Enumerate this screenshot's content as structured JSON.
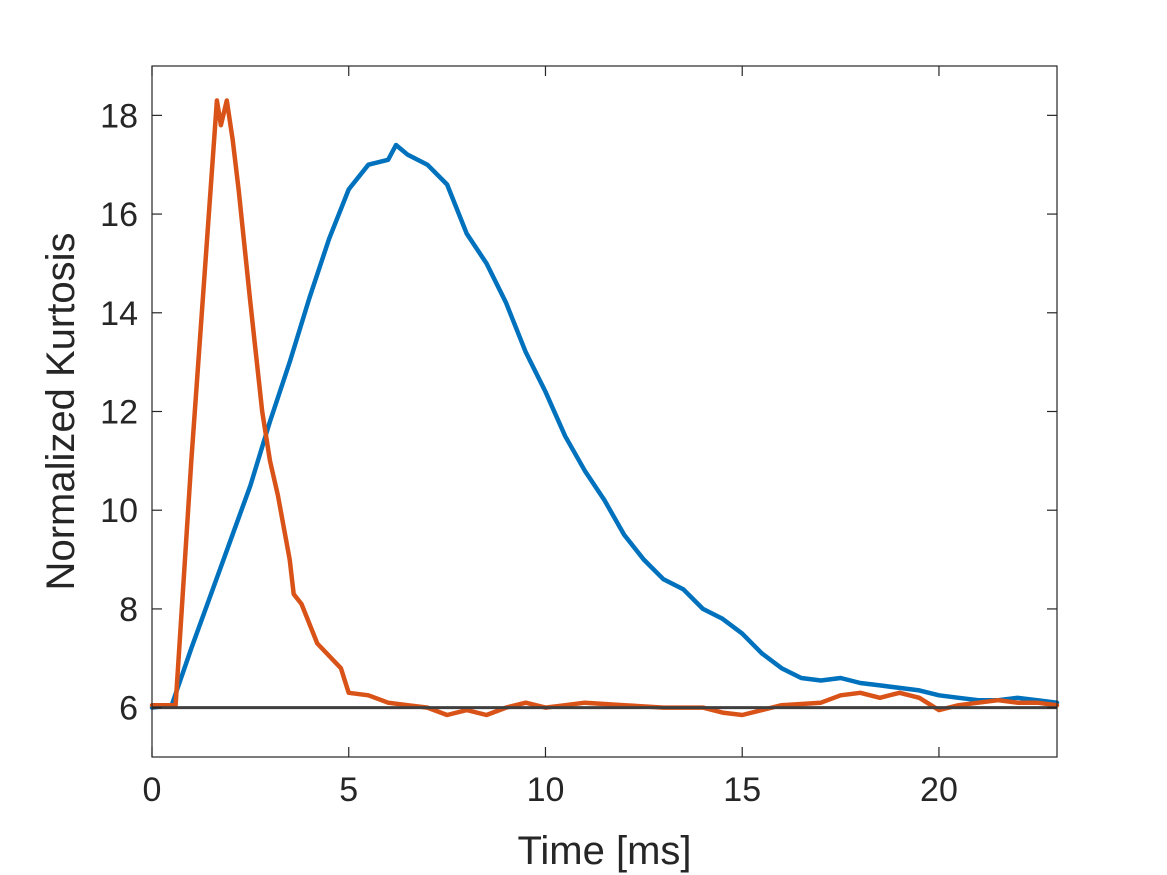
{
  "chart_data": {
    "type": "line",
    "title": "",
    "xlabel": "Time [ms]",
    "ylabel": "Normalized Kurtosis",
    "xlim": [
      0,
      23
    ],
    "ylim": [
      5,
      19
    ],
    "xticks": [
      0,
      5,
      10,
      15,
      20
    ],
    "yticks": [
      6,
      8,
      10,
      12,
      14,
      16,
      18
    ],
    "grid": false,
    "legend": "none",
    "reference_line": {
      "y": 6,
      "color": "#3f3f3f"
    },
    "series": [
      {
        "color": "#0072BD",
        "x": [
          0,
          0.5,
          1.0,
          1.5,
          2.0,
          2.5,
          3.0,
          3.5,
          4.0,
          4.5,
          5.0,
          5.5,
          6.0,
          6.2,
          6.5,
          7.0,
          7.5,
          8.0,
          8.5,
          9.0,
          9.5,
          10.0,
          10.5,
          11.0,
          11.5,
          12.0,
          12.5,
          13.0,
          13.5,
          14.0,
          14.5,
          15.0,
          15.5,
          16.0,
          16.5,
          17.0,
          17.5,
          18.0,
          18.5,
          19.0,
          19.5,
          20.0,
          20.5,
          21.0,
          21.5,
          22.0,
          22.5,
          23.0
        ],
        "y": [
          6.0,
          6.05,
          7.2,
          8.3,
          9.4,
          10.5,
          11.8,
          13.0,
          14.3,
          15.5,
          16.5,
          17.0,
          17.1,
          17.4,
          17.2,
          17.0,
          16.6,
          15.6,
          15.0,
          14.2,
          13.2,
          12.4,
          11.5,
          10.8,
          10.2,
          9.5,
          9.0,
          8.6,
          8.4,
          8.0,
          7.8,
          7.5,
          7.1,
          6.8,
          6.6,
          6.55,
          6.6,
          6.5,
          6.45,
          6.4,
          6.35,
          6.25,
          6.2,
          6.15,
          6.15,
          6.2,
          6.15,
          6.1
        ]
      },
      {
        "color": "#D95319",
        "x": [
          0,
          0.6,
          1.0,
          1.4,
          1.65,
          1.75,
          1.9,
          2.05,
          2.2,
          2.5,
          2.8,
          3.0,
          3.2,
          3.5,
          3.6,
          3.8,
          4.2,
          4.8,
          5.0,
          5.5,
          6.0,
          6.5,
          7.0,
          7.5,
          8.0,
          8.5,
          9.0,
          9.5,
          10.0,
          10.5,
          11.0,
          12.0,
          13.0,
          14.0,
          14.5,
          15.0,
          16.0,
          17.0,
          17.5,
          18.0,
          18.5,
          19.0,
          19.5,
          20.0,
          20.5,
          21.0,
          21.5,
          22.0,
          22.5,
          23.0
        ],
        "y": [
          6.05,
          6.05,
          11.0,
          15.5,
          18.3,
          17.8,
          18.3,
          17.5,
          16.5,
          14.2,
          12.0,
          11.0,
          10.3,
          9.0,
          8.3,
          8.1,
          7.3,
          6.8,
          6.3,
          6.25,
          6.1,
          6.05,
          6.0,
          5.85,
          5.95,
          5.85,
          6.0,
          6.1,
          6.0,
          6.05,
          6.1,
          6.05,
          6.0,
          6.0,
          5.9,
          5.85,
          6.05,
          6.1,
          6.25,
          6.3,
          6.2,
          6.3,
          6.2,
          5.95,
          6.05,
          6.1,
          6.15,
          6.1,
          6.1,
          6.05
        ]
      }
    ]
  }
}
